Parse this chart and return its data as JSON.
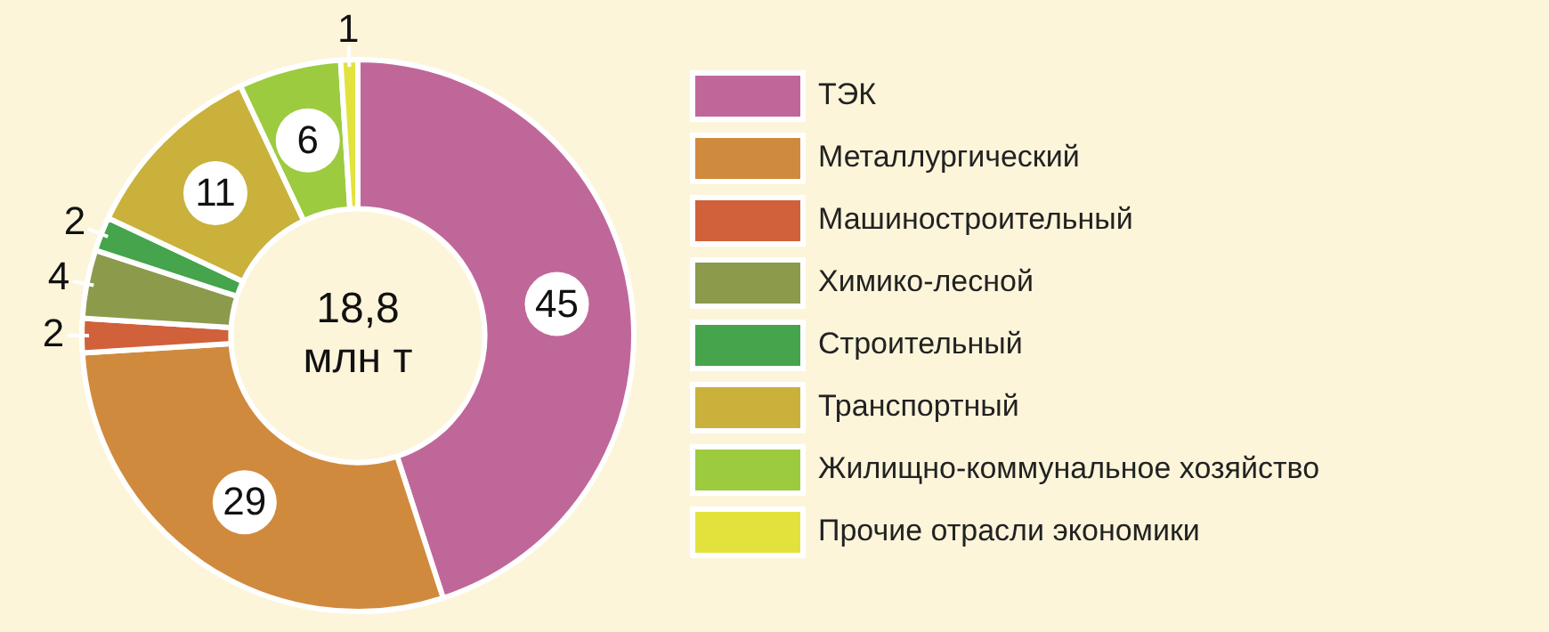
{
  "chart_data": {
    "type": "donut",
    "categories": [
      "ТЭК",
      "Металлургический",
      "Машиностроительный",
      "Химико-лесной",
      "Строительный",
      "Транспортный",
      "Жилищно-коммунальное хозяйство",
      "Прочие отрасли экономики"
    ],
    "values": [
      45,
      29,
      2,
      4,
      2,
      11,
      6,
      1
    ],
    "colors": [
      "#c0679a",
      "#d08a3e",
      "#d0613a",
      "#8c9a4c",
      "#45a44c",
      "#c9b13c",
      "#9ccb40",
      "#e2e23c"
    ],
    "annotations": [
      "18,8",
      "млн т"
    ],
    "data_labels": true,
    "legend": "right"
  }
}
